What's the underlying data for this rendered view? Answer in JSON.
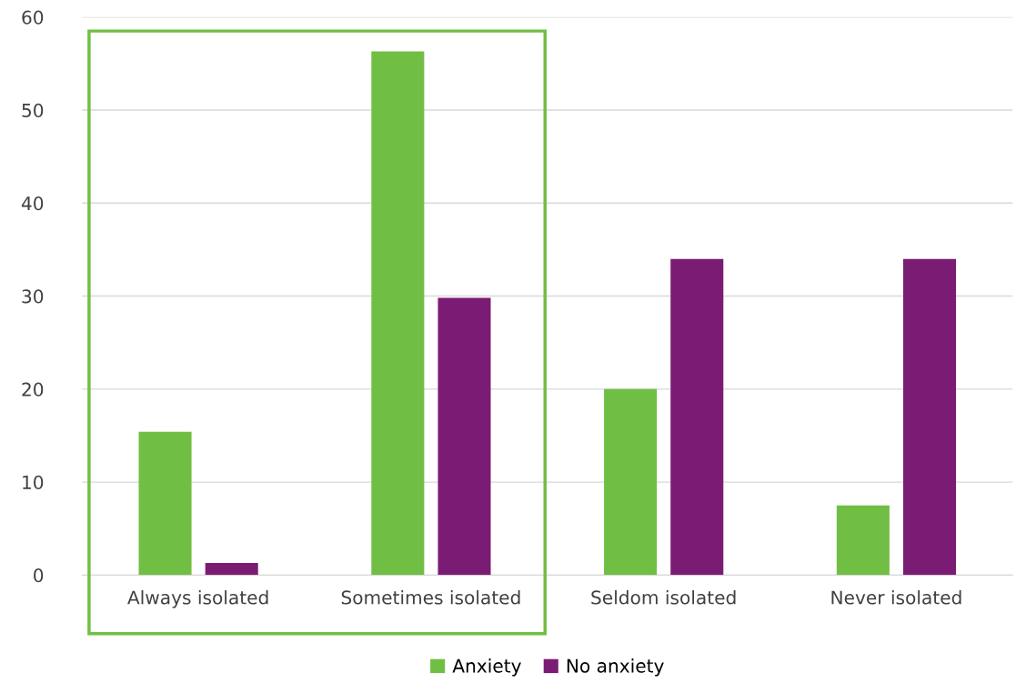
{
  "chart_data": {
    "type": "bar",
    "categories": [
      "Always isolated",
      "Sometimes isolated",
      "Seldom isolated",
      "Never isolated"
    ],
    "series": [
      {
        "name": "Anxiety",
        "color": "#70bf44",
        "values": [
          15.4,
          56.3,
          20,
          7.5
        ]
      },
      {
        "name": "No anxiety",
        "color": "#7b1c74",
        "values": [
          1.3,
          29.8,
          34,
          34
        ]
      }
    ],
    "ylim": [
      0,
      60
    ],
    "yticks": [
      0,
      10,
      20,
      30,
      40,
      50,
      60
    ],
    "grid": "y",
    "legend": "bottom"
  }
}
